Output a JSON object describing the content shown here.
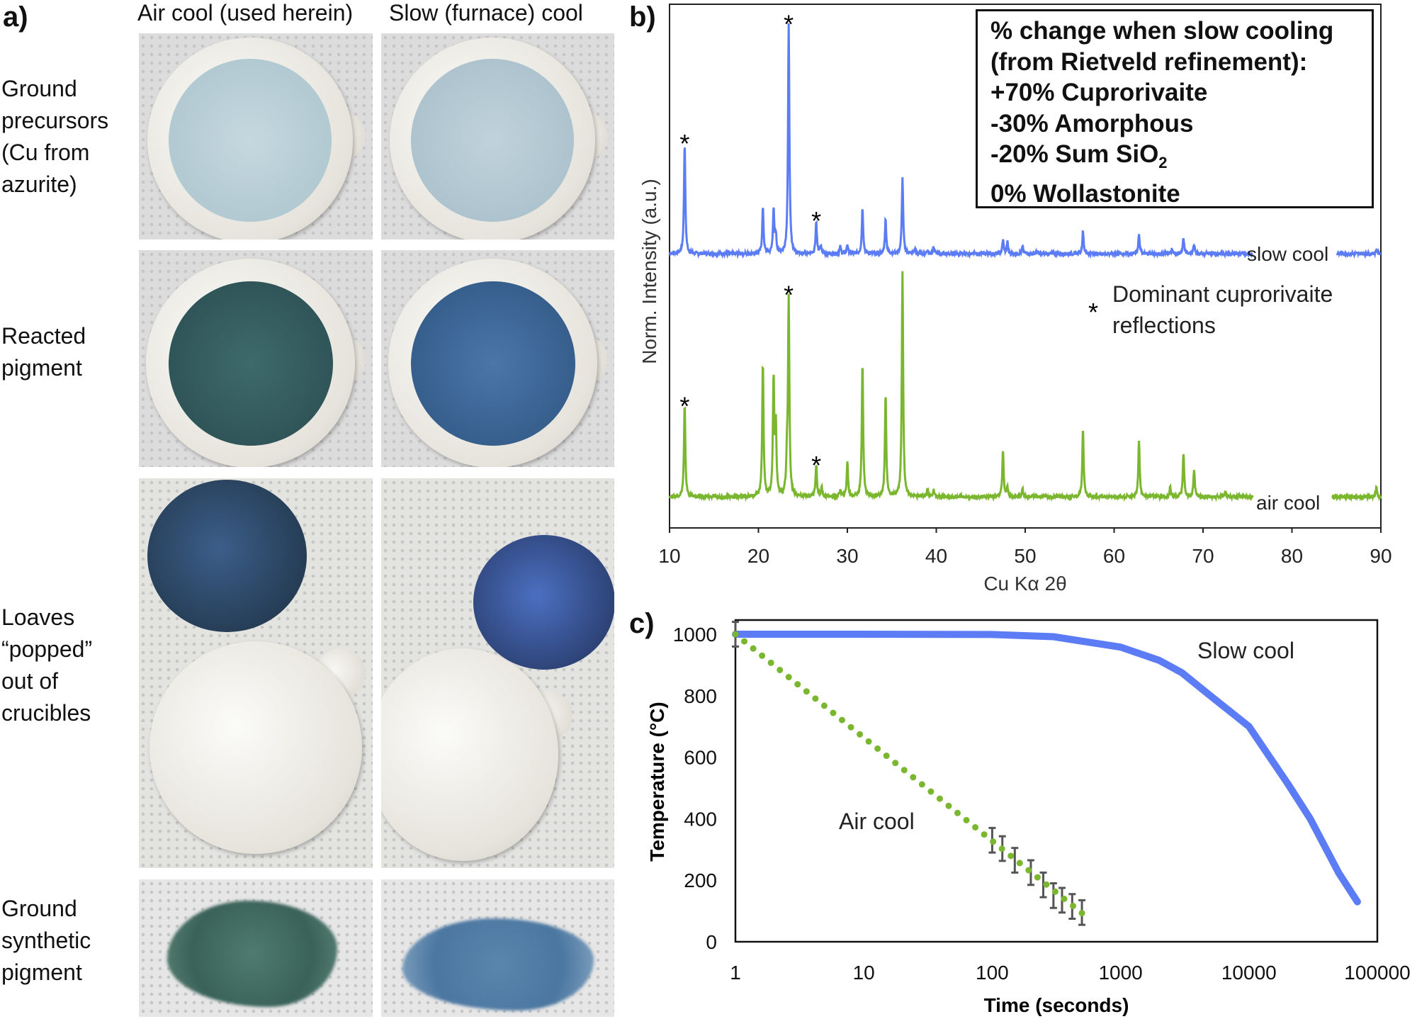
{
  "panel_a": {
    "label": "a)",
    "columns": [
      "Air cool (used herein)",
      "Slow (furnace) cool"
    ],
    "rows": [
      {
        "lines": [
          "Ground",
          "precursors",
          "(Cu from",
          "azurite)"
        ]
      },
      {
        "lines": [
          "Reacted",
          "pigment"
        ]
      },
      {
        "lines": [
          "Loaves",
          "“popped”",
          "out of",
          "crucibles"
        ]
      },
      {
        "lines": [
          "Ground",
          "synthetic",
          "pigment"
        ]
      }
    ]
  },
  "colors": {
    "slow": "#5b7cf5",
    "air": "#7ab62e",
    "errorbar": "#555555"
  },
  "chart_data": [
    {
      "panel_label": "b)",
      "type": "line",
      "title": "",
      "xlabel": "Cu Kα 2θ",
      "ylabel": "Norm. Intensity (a.u.)",
      "xlim": [
        10,
        90
      ],
      "xticks": [
        10,
        20,
        30,
        40,
        50,
        60,
        70,
        80,
        90
      ],
      "grid": false,
      "series": [
        {
          "name": "slow cool",
          "label": "slow cool",
          "peaks": [
            [
              11.7,
              48
            ],
            [
              20.5,
              20
            ],
            [
              21.7,
              19
            ],
            [
              21.95,
              8
            ],
            [
              23.4,
              100
            ],
            [
              26.5,
              14
            ],
            [
              27.0,
              3
            ],
            [
              29.2,
              3
            ],
            [
              30.0,
              4
            ],
            [
              31.7,
              20
            ],
            [
              34.3,
              15
            ],
            [
              36.2,
              33
            ],
            [
              37.6,
              2
            ],
            [
              39.0,
              1.5
            ],
            [
              39.7,
              3
            ],
            [
              47.5,
              6
            ],
            [
              48.0,
              5
            ],
            [
              49.7,
              3
            ],
            [
              51.3,
              1
            ],
            [
              56.5,
              10
            ],
            [
              62.8,
              9
            ],
            [
              66.5,
              1.5
            ],
            [
              67.8,
              7
            ],
            [
              69.0,
              4
            ],
            [
              89.5,
              2
            ]
          ]
        },
        {
          "name": "air cool",
          "label": "air cool",
          "peaks": [
            [
              11.7,
              40
            ],
            [
              20.5,
              58
            ],
            [
              21.7,
              51
            ],
            [
              21.95,
              30
            ],
            [
              23.2,
              14
            ],
            [
              23.4,
              86
            ],
            [
              26.5,
              14
            ],
            [
              27.1,
              4
            ],
            [
              29.2,
              3
            ],
            [
              30.0,
              15
            ],
            [
              31.7,
              59
            ],
            [
              34.3,
              45
            ],
            [
              36.2,
              98
            ],
            [
              39.0,
              3
            ],
            [
              39.7,
              3
            ],
            [
              47.5,
              20
            ],
            [
              48.0,
              4
            ],
            [
              49.7,
              4
            ],
            [
              56.5,
              30
            ],
            [
              62.8,
              25
            ],
            [
              66.3,
              4
            ],
            [
              67.8,
              19
            ],
            [
              69.0,
              12
            ],
            [
              72.5,
              2
            ],
            [
              89.5,
              4
            ]
          ]
        }
      ],
      "star_marks": {
        "symbol": "*",
        "positions": [
          11.7,
          23.4,
          26.5
        ]
      },
      "annotations": {
        "star_legend_symbol": "*",
        "star_legend_lines": [
          "Dominant cuprorivaite",
          "reflections"
        ]
      },
      "legend_box": {
        "lines": [
          "% change when slow cooling",
          "(from Rietveld refinement):",
          "+70% Cuprorivaite",
          "-30% Amorphous"
        ],
        "sio2_prefix": "-20% Sum SiO",
        "sio2_sub": "2",
        "last_line": "0% Wollastonite"
      }
    },
    {
      "panel_label": "c)",
      "type": "scatter",
      "xlabel": "Time (seconds)",
      "ylabel": "Temperature (°C)",
      "xscale": "log",
      "xlim": [
        1,
        100000
      ],
      "ylim": [
        0,
        1050
      ],
      "xticks": [
        1,
        10,
        100,
        1000,
        10000,
        100000
      ],
      "yticks": [
        0,
        200,
        400,
        600,
        800,
        1000
      ],
      "series": [
        {
          "name": "Slow cool",
          "label": "Slow cool",
          "style": "line",
          "points": [
            [
              1,
              1000
            ],
            [
              10,
              1000
            ],
            [
              100,
              999
            ],
            [
              300,
              992
            ],
            [
              1000,
              958
            ],
            [
              2000,
              915
            ],
            [
              3000,
              875
            ],
            [
              5000,
              800
            ],
            [
              10000,
              700
            ],
            [
              20000,
              515
            ],
            [
              30000,
              400
            ],
            [
              50000,
              224
            ],
            [
              70000,
              130
            ]
          ]
        },
        {
          "name": "Air cool",
          "label": "Air cool",
          "style": "dots",
          "model": {
            "t_start": 1,
            "t_end": 500,
            "n_points": 40,
            "T_at_1s": 1000,
            "slope_per_decade": -336
          },
          "error_bars": [
            [
              1,
              1000,
              40
            ],
            [
              100,
              330,
              40
            ],
            [
              120,
              303,
              40
            ],
            [
              150,
              265,
              40
            ],
            [
              200,
              225,
              40
            ],
            [
              250,
              185,
              40
            ],
            [
              300,
              150,
              40
            ],
            [
              350,
              135,
              40
            ],
            [
              420,
              115,
              40
            ],
            [
              500,
              95,
              40
            ]
          ]
        }
      ]
    }
  ]
}
